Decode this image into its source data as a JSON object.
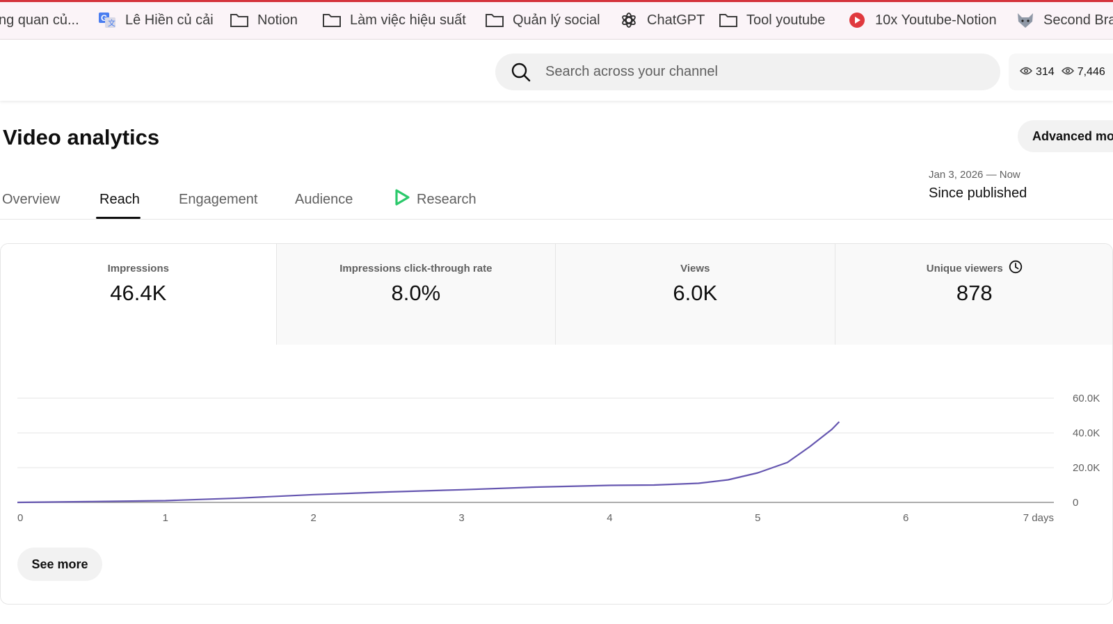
{
  "bookmarks": [
    {
      "label": "ng quan củ...",
      "icon": "none"
    },
    {
      "label": "Lê Hiền củ cải",
      "icon": "translate-icon"
    },
    {
      "label": "Notion",
      "icon": "folder-icon"
    },
    {
      "label": "Làm việc hiệu suất",
      "icon": "folder-icon"
    },
    {
      "label": "Quản lý social",
      "icon": "folder-icon"
    },
    {
      "label": "ChatGPT",
      "icon": "openai-icon"
    },
    {
      "label": "Tool youtube",
      "icon": "folder-icon"
    },
    {
      "label": "10x Youtube-Notion",
      "icon": "youtube-play-icon"
    },
    {
      "label": "Second Bra",
      "icon": "fox-icon"
    }
  ],
  "header": {
    "search_placeholder": "Search across your channel",
    "count_1": "314",
    "count_2": "7,446"
  },
  "page": {
    "title": "Video analytics",
    "advanced_button": "Advanced mo"
  },
  "tabs": [
    "Overview",
    "Reach",
    "Engagement",
    "Audience",
    "Research"
  ],
  "active_tab": "Reach",
  "date": {
    "range": "Jan 3, 2026 — Now",
    "label": "Since published"
  },
  "metrics": [
    {
      "label": "Impressions",
      "value": "46.4K"
    },
    {
      "label": "Impressions click-through rate",
      "value": "8.0%"
    },
    {
      "label": "Views",
      "value": "6.0K"
    },
    {
      "label": "Unique viewers",
      "value": "878"
    }
  ],
  "colors": {
    "accent_line": "#6556b0",
    "research_icon": "#2bc96b",
    "bookmark_bar_top": "#d4343c"
  },
  "chart_data": {
    "type": "line",
    "series": [
      {
        "x": [
          0,
          0.5,
          1,
          1.5,
          2,
          2.5,
          3,
          3.5,
          4,
          4.3,
          4.6,
          4.8,
          5.0,
          5.2,
          5.35,
          5.5,
          5.55
        ],
        "values": [
          0,
          500,
          1000,
          2500,
          4500,
          6000,
          7300,
          8800,
          9800,
          10000,
          11000,
          13000,
          17000,
          23000,
          32000,
          42000,
          46400
        ]
      }
    ],
    "xticks": [
      "0",
      "1",
      "2",
      "3",
      "4",
      "5",
      "6",
      "7 days"
    ],
    "yticks": [
      "0",
      "20.0K",
      "40.0K",
      "60.0K"
    ],
    "xlim": [
      0,
      7
    ],
    "ylim": [
      0,
      60000
    ],
    "grid": true
  },
  "see_more": "See more"
}
